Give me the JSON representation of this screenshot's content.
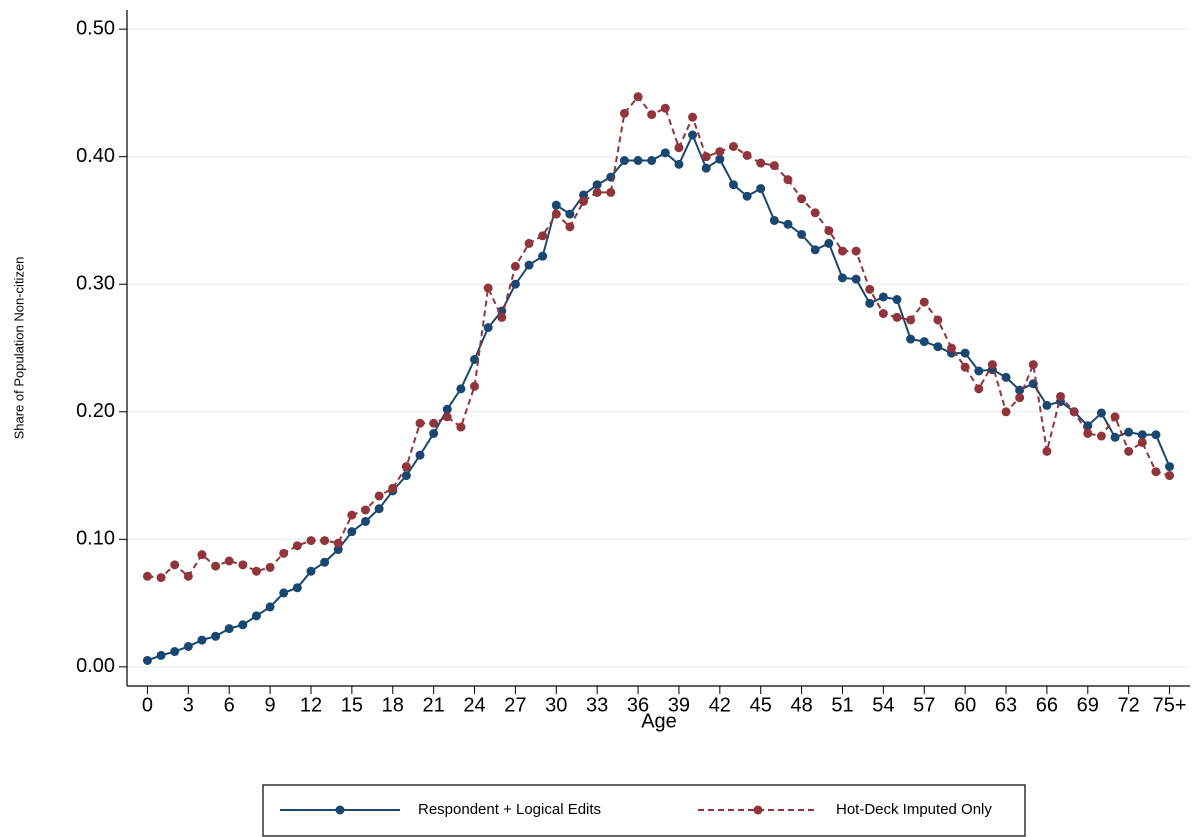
{
  "chart_data": {
    "type": "line",
    "x_label": "Age",
    "y_label": "Share of Population Non-citizen",
    "x": [
      0,
      1,
      2,
      3,
      4,
      5,
      6,
      7,
      8,
      9,
      10,
      11,
      12,
      13,
      14,
      15,
      16,
      17,
      18,
      19,
      20,
      21,
      22,
      23,
      24,
      25,
      26,
      27,
      28,
      29,
      30,
      31,
      32,
      33,
      34,
      35,
      36,
      37,
      38,
      39,
      40,
      41,
      42,
      43,
      44,
      45,
      46,
      47,
      48,
      49,
      50,
      51,
      52,
      53,
      54,
      55,
      56,
      57,
      58,
      59,
      60,
      61,
      62,
      63,
      64,
      65,
      66,
      67,
      68,
      69,
      70,
      71,
      72,
      73,
      74,
      75
    ],
    "xlim": [
      -1.5,
      76.5
    ],
    "xticks": [
      0,
      3,
      6,
      9,
      12,
      15,
      18,
      21,
      24,
      27,
      30,
      33,
      36,
      39,
      42,
      45,
      48,
      51,
      54,
      57,
      60,
      63,
      66,
      69,
      72,
      {
        "value": 75,
        "label": "75+"
      }
    ],
    "ylim": [
      -0.015,
      0.515
    ],
    "yticks": [
      {
        "value": 0,
        "label": "0.00"
      },
      {
        "value": 0.1,
        "label": "0.10"
      },
      {
        "value": 0.2,
        "label": "0.20"
      },
      {
        "value": 0.3,
        "label": "0.30"
      },
      {
        "value": 0.4,
        "label": "0.40"
      },
      {
        "value": 0.5,
        "label": "0.50"
      }
    ],
    "grid": true,
    "legend": "bottom",
    "series": [
      {
        "name": "Respondent + Logical Edits",
        "color": "#1a476f",
        "dash": false,
        "values": [
          0.005,
          0.009,
          0.012,
          0.016,
          0.021,
          0.024,
          0.03,
          0.033,
          0.04,
          0.047,
          0.058,
          0.062,
          0.075,
          0.082,
          0.092,
          0.106,
          0.114,
          0.124,
          0.138,
          0.15,
          0.166,
          0.183,
          0.202,
          0.218,
          0.241,
          0.266,
          0.279,
          0.3,
          0.315,
          0.322,
          0.362,
          0.355,
          0.37,
          0.378,
          0.384,
          0.397,
          0.397,
          0.397,
          0.403,
          0.394,
          0.417,
          0.391,
          0.398,
          0.378,
          0.369,
          0.375,
          0.35,
          0.347,
          0.339,
          0.327,
          0.332,
          0.305,
          0.304,
          0.285,
          0.29,
          0.288,
          0.257,
          0.255,
          0.251,
          0.246,
          0.246,
          0.232,
          0.233,
          0.227,
          0.217,
          0.222,
          0.205,
          0.208,
          0.2,
          0.189,
          0.199,
          0.18,
          0.184,
          0.182,
          0.182,
          0.157
        ]
      },
      {
        "name": "Hot-Deck Imputed Only",
        "color": "#90353b",
        "dash": true,
        "values": [
          0.071,
          0.07,
          0.08,
          0.071,
          0.088,
          0.079,
          0.083,
          0.08,
          0.075,
          0.078,
          0.089,
          0.095,
          0.099,
          0.099,
          0.097,
          0.119,
          0.123,
          0.134,
          0.14,
          0.157,
          0.191,
          0.191,
          0.196,
          0.188,
          0.22,
          0.297,
          0.274,
          0.314,
          0.332,
          0.338,
          0.355,
          0.345,
          0.365,
          0.372,
          0.372,
          0.434,
          0.447,
          0.433,
          0.438,
          0.407,
          0.431,
          0.4,
          0.404,
          0.408,
          0.401,
          0.395,
          0.393,
          0.382,
          0.367,
          0.356,
          0.342,
          0.326,
          0.326,
          0.296,
          0.277,
          0.274,
          0.272,
          0.286,
          0.272,
          0.25,
          0.235,
          0.218,
          0.237,
          0.2,
          0.211,
          0.237,
          0.169,
          0.212,
          0.2,
          0.183,
          0.181,
          0.196,
          0.169,
          0.176,
          0.153,
          0.15
        ]
      }
    ]
  }
}
